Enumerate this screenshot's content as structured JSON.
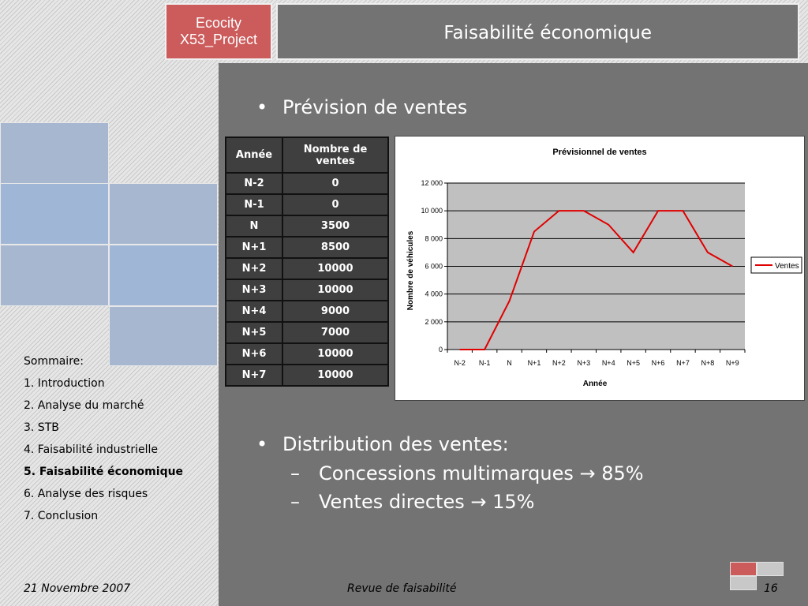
{
  "header": {
    "logo_line1": "Ecocity",
    "logo_line2": "X53_Project",
    "slide_title": "Faisabilité économique"
  },
  "toc": {
    "heading": "Sommaire:",
    "items": [
      "1. Introduction",
      "2. Analyse du marché",
      "3. STB",
      "4. Faisabilité industrielle",
      "5. Faisabilité économique",
      "6. Analyse des risques",
      "7. Conclusion"
    ],
    "active_index": 4
  },
  "content": {
    "bullet1": "Prévision de ventes",
    "bullet2": "Distribution des ventes:",
    "sub1": "Concessions multimarques → 85%",
    "sub2": "Ventes directes → 15%"
  },
  "table": {
    "headers": [
      "Année",
      "Nombre de ventes"
    ],
    "rows": [
      [
        "N-2",
        "0"
      ],
      [
        "N-1",
        "0"
      ],
      [
        "N",
        "3500"
      ],
      [
        "N+1",
        "8500"
      ],
      [
        "N+2",
        "10000"
      ],
      [
        "N+3",
        "10000"
      ],
      [
        "N+4",
        "9000"
      ],
      [
        "N+5",
        "7000"
      ],
      [
        "N+6",
        "10000"
      ],
      [
        "N+7",
        "10000"
      ]
    ]
  },
  "chart_data": {
    "type": "line",
    "title": "Prévisionnel de ventes",
    "xlabel": "Année",
    "ylabel": "Nombre de véhicules",
    "categories": [
      "N-2",
      "N-1",
      "N",
      "N+1",
      "N+2",
      "N+3",
      "N+4",
      "N+5",
      "N+6",
      "N+7",
      "N+8",
      "N+9"
    ],
    "series": [
      {
        "name": "Ventes",
        "values": [
          0,
          0,
          3500,
          8500,
          10000,
          10000,
          9000,
          7000,
          10000,
          10000,
          7000,
          6000
        ],
        "color": "#e00000"
      }
    ],
    "ylim": [
      0,
      12000
    ],
    "yticks": [
      0,
      2000,
      4000,
      6000,
      8000,
      10000,
      12000
    ],
    "ytick_labels": [
      "0",
      "2 000",
      "4 000",
      "6 000",
      "8 000",
      "10 000",
      "12 000"
    ],
    "grid": true,
    "plot_background": "#c0c0c0",
    "legend_position": "right"
  },
  "footer": {
    "date": "21 Novembre 2007",
    "center": "Revue de faisabilité",
    "page": "16"
  },
  "colors": {
    "accent_red": "#cc5b5b",
    "deco_blue": "#a6b7cf"
  }
}
